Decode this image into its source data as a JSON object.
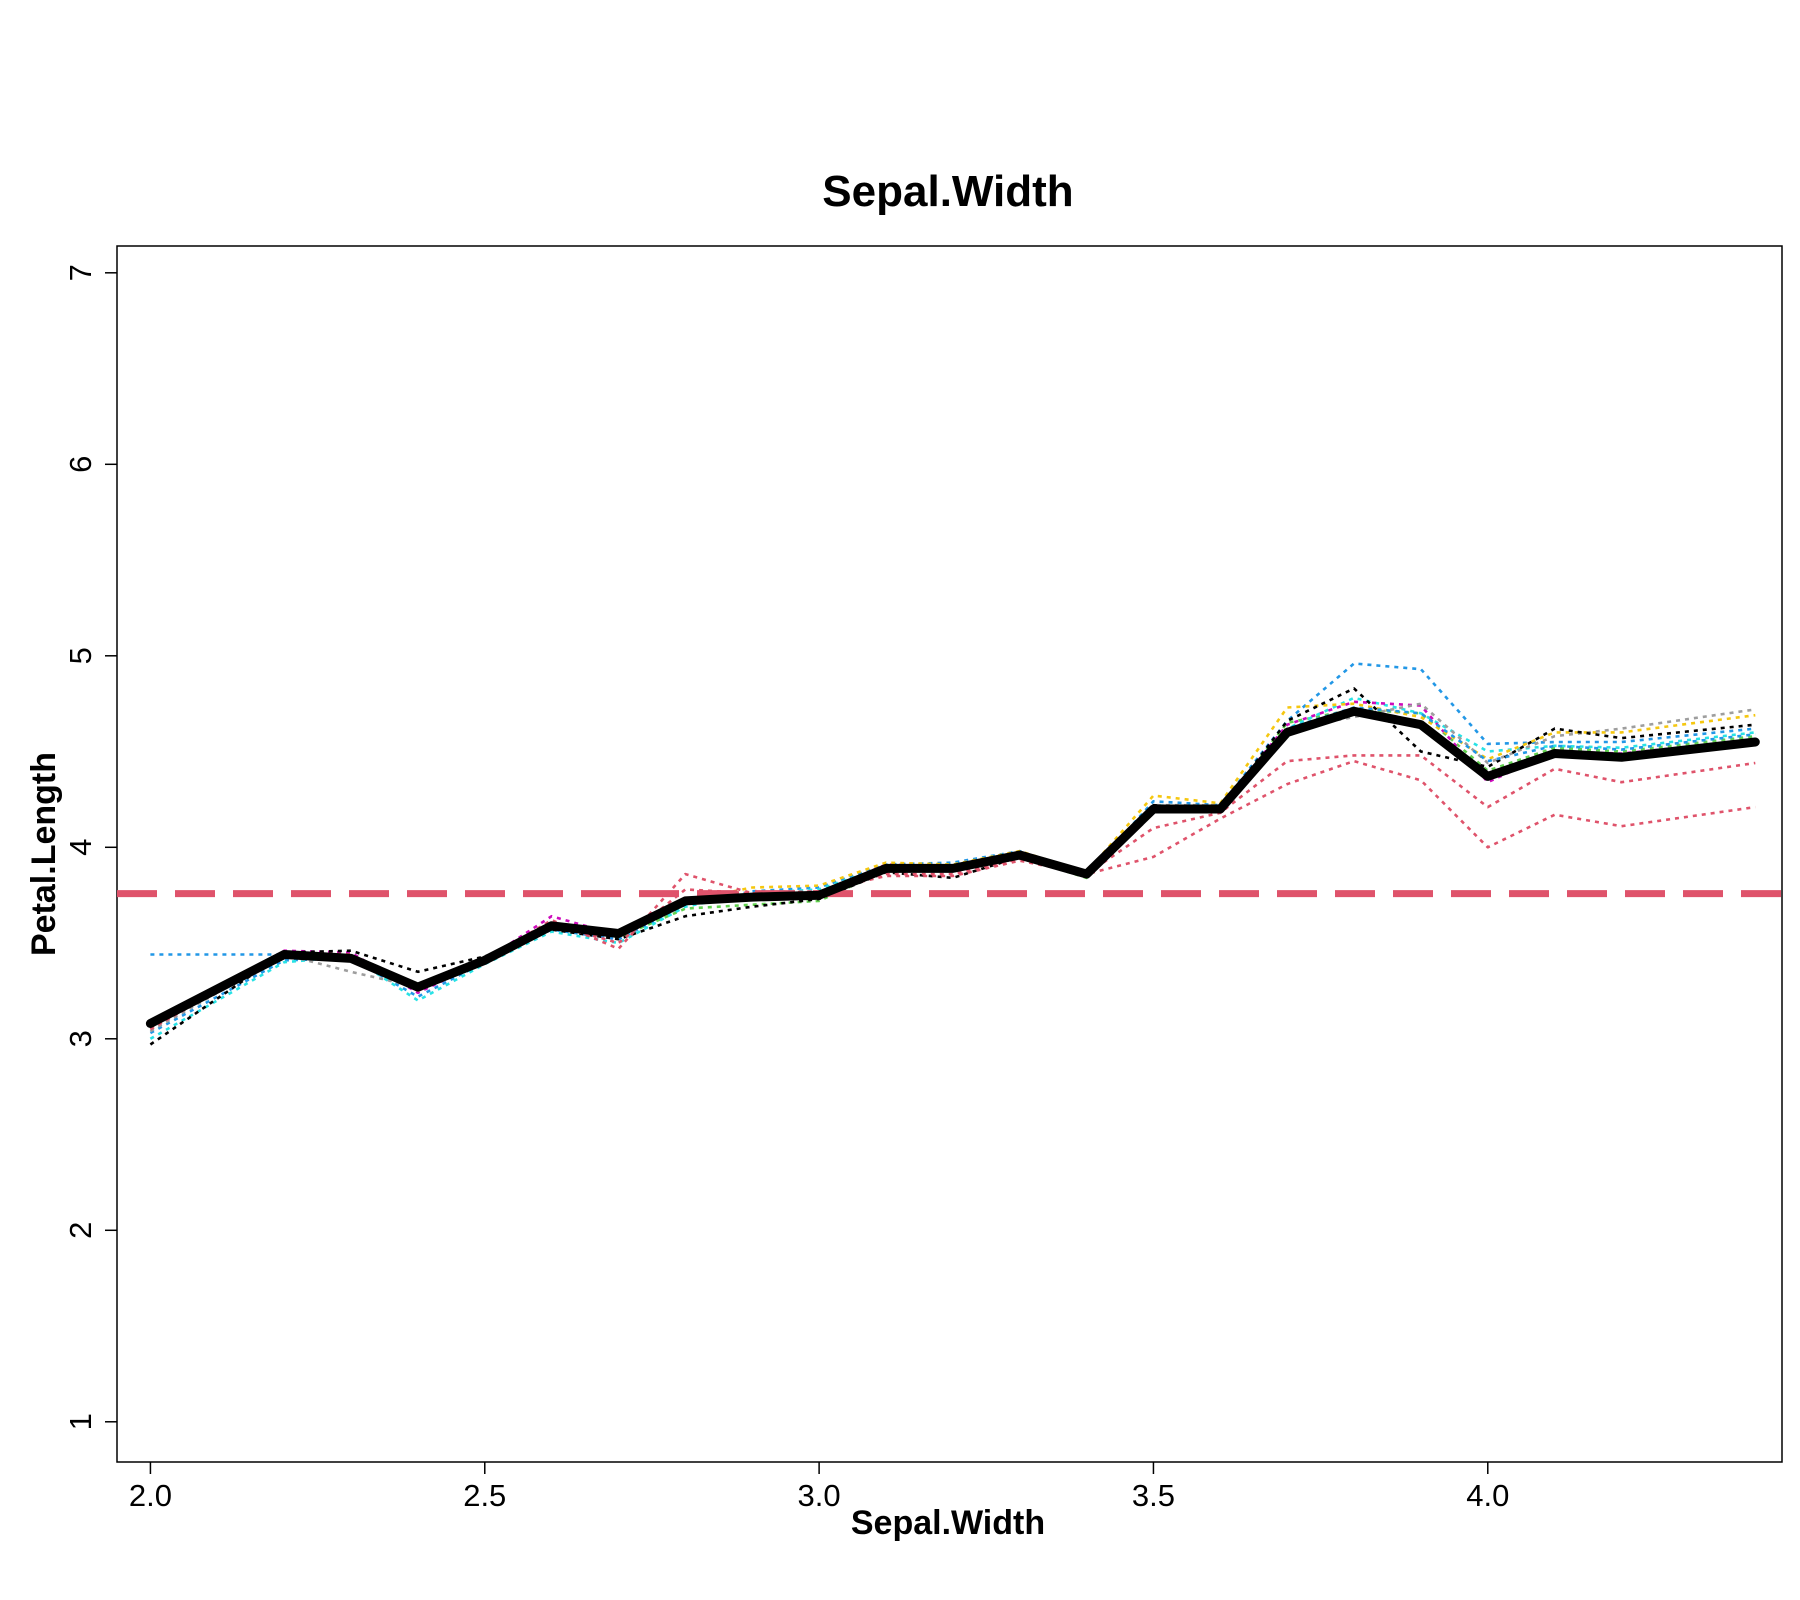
{
  "chart_data": {
    "type": "line",
    "title": "Sepal.Width",
    "xlabel": "Sepal.Width",
    "ylabel": "Petal.Length",
    "xlim": [
      1.95,
      4.44
    ],
    "ylim": [
      0.79,
      7.14
    ],
    "x_ticks": [
      2.0,
      2.5,
      3.0,
      3.5,
      4.0
    ],
    "x_tick_labels": [
      "2.0",
      "2.5",
      "3.0",
      "3.5",
      "4.0"
    ],
    "y_ticks": [
      1,
      2,
      3,
      4,
      5,
      6,
      7
    ],
    "y_tick_labels": [
      "1",
      "2",
      "3",
      "4",
      "5",
      "6",
      "7"
    ],
    "grid": false,
    "x": [
      2.0,
      2.2,
      2.3,
      2.4,
      2.5,
      2.6,
      2.7,
      2.8,
      2.9,
      3.0,
      3.1,
      3.2,
      3.3,
      3.4,
      3.5,
      3.6,
      3.7,
      3.8,
      3.9,
      4.0,
      4.1,
      4.2,
      4.4
    ],
    "reference_line": {
      "y": 3.758,
      "color": "#df536b"
    },
    "main_series": {
      "color": "#000000",
      "values": [
        3.08,
        3.44,
        3.42,
        3.27,
        3.41,
        3.59,
        3.55,
        3.72,
        3.74,
        3.75,
        3.89,
        3.89,
        3.96,
        3.86,
        4.2,
        4.2,
        4.6,
        4.71,
        4.64,
        4.37,
        4.49,
        4.47,
        4.55
      ]
    },
    "series": [
      {
        "color": "#2297e6",
        "values": [
          3.03,
          3.41,
          3.42,
          3.22,
          3.4,
          3.57,
          3.52,
          3.7,
          3.77,
          3.79,
          3.91,
          3.92,
          3.98,
          3.85,
          4.24,
          4.22,
          4.66,
          4.96,
          4.93,
          4.54,
          4.55,
          4.55,
          4.62
        ]
      },
      {
        "color": "#61d04f",
        "values": [
          3.05,
          3.45,
          3.44,
          3.28,
          3.42,
          3.58,
          3.53,
          3.68,
          3.7,
          3.72,
          3.88,
          3.88,
          3.95,
          3.84,
          4.21,
          4.2,
          4.65,
          4.72,
          4.7,
          4.4,
          4.52,
          4.5,
          4.58
        ]
      },
      {
        "color": "#28e2e5",
        "values": [
          3.0,
          3.4,
          3.43,
          3.2,
          3.39,
          3.56,
          3.5,
          3.69,
          3.76,
          3.78,
          3.9,
          3.9,
          3.97,
          3.86,
          4.22,
          4.21,
          4.62,
          4.78,
          4.7,
          4.5,
          4.53,
          4.52,
          4.6
        ]
      },
      {
        "color": "#cd0bbc",
        "values": [
          3.06,
          3.46,
          3.45,
          3.24,
          3.41,
          3.64,
          3.54,
          3.73,
          3.75,
          3.76,
          3.91,
          3.9,
          3.97,
          3.85,
          4.2,
          4.21,
          4.64,
          4.76,
          4.74,
          4.34,
          4.5,
          4.49,
          4.56
        ]
      },
      {
        "color": "#f5c710",
        "values": [
          3.07,
          3.43,
          3.41,
          3.26,
          3.42,
          3.6,
          3.55,
          3.72,
          3.79,
          3.8,
          3.92,
          3.91,
          3.98,
          3.87,
          4.27,
          4.23,
          4.73,
          4.75,
          4.68,
          4.46,
          4.6,
          4.6,
          4.69
        ]
      },
      {
        "color": "#9e9e9e",
        "values": [
          3.04,
          3.44,
          3.35,
          3.27,
          3.41,
          3.58,
          3.55,
          3.71,
          3.74,
          3.75,
          3.89,
          3.89,
          3.96,
          3.86,
          4.22,
          4.22,
          4.62,
          4.68,
          4.75,
          4.44,
          4.58,
          4.62,
          4.72
        ]
      },
      {
        "color": "#000000",
        "values": [
          2.97,
          3.45,
          3.46,
          3.35,
          3.43,
          3.57,
          3.52,
          3.64,
          3.69,
          3.73,
          3.87,
          3.84,
          3.95,
          3.85,
          4.22,
          4.2,
          4.66,
          4.83,
          4.5,
          4.42,
          4.62,
          4.57,
          4.64
        ]
      },
      {
        "color": "#df536b",
        "values": [
          3.05,
          3.45,
          3.44,
          3.25,
          3.41,
          3.62,
          3.47,
          3.86,
          3.76,
          3.77,
          3.85,
          3.85,
          3.93,
          3.86,
          3.95,
          4.15,
          4.33,
          4.45,
          4.35,
          4.0,
          4.17,
          4.11,
          4.21
        ]
      },
      {
        "color": "#df536b",
        "values": [
          3.06,
          3.43,
          3.43,
          3.25,
          3.41,
          3.6,
          3.5,
          3.78,
          3.76,
          3.77,
          3.86,
          3.86,
          3.94,
          3.86,
          4.1,
          4.18,
          4.45,
          4.48,
          4.48,
          4.21,
          4.41,
          4.34,
          4.44
        ]
      },
      {
        "color": "#2297e6",
        "values": [
          3.44,
          3.44,
          3.42,
          3.27,
          3.4,
          3.58,
          3.54,
          3.72,
          3.75,
          3.76,
          3.89,
          3.9,
          3.96,
          3.86,
          4.21,
          4.2,
          4.62,
          4.73,
          4.7,
          4.45,
          4.53,
          4.51,
          4.59
        ]
      }
    ]
  }
}
